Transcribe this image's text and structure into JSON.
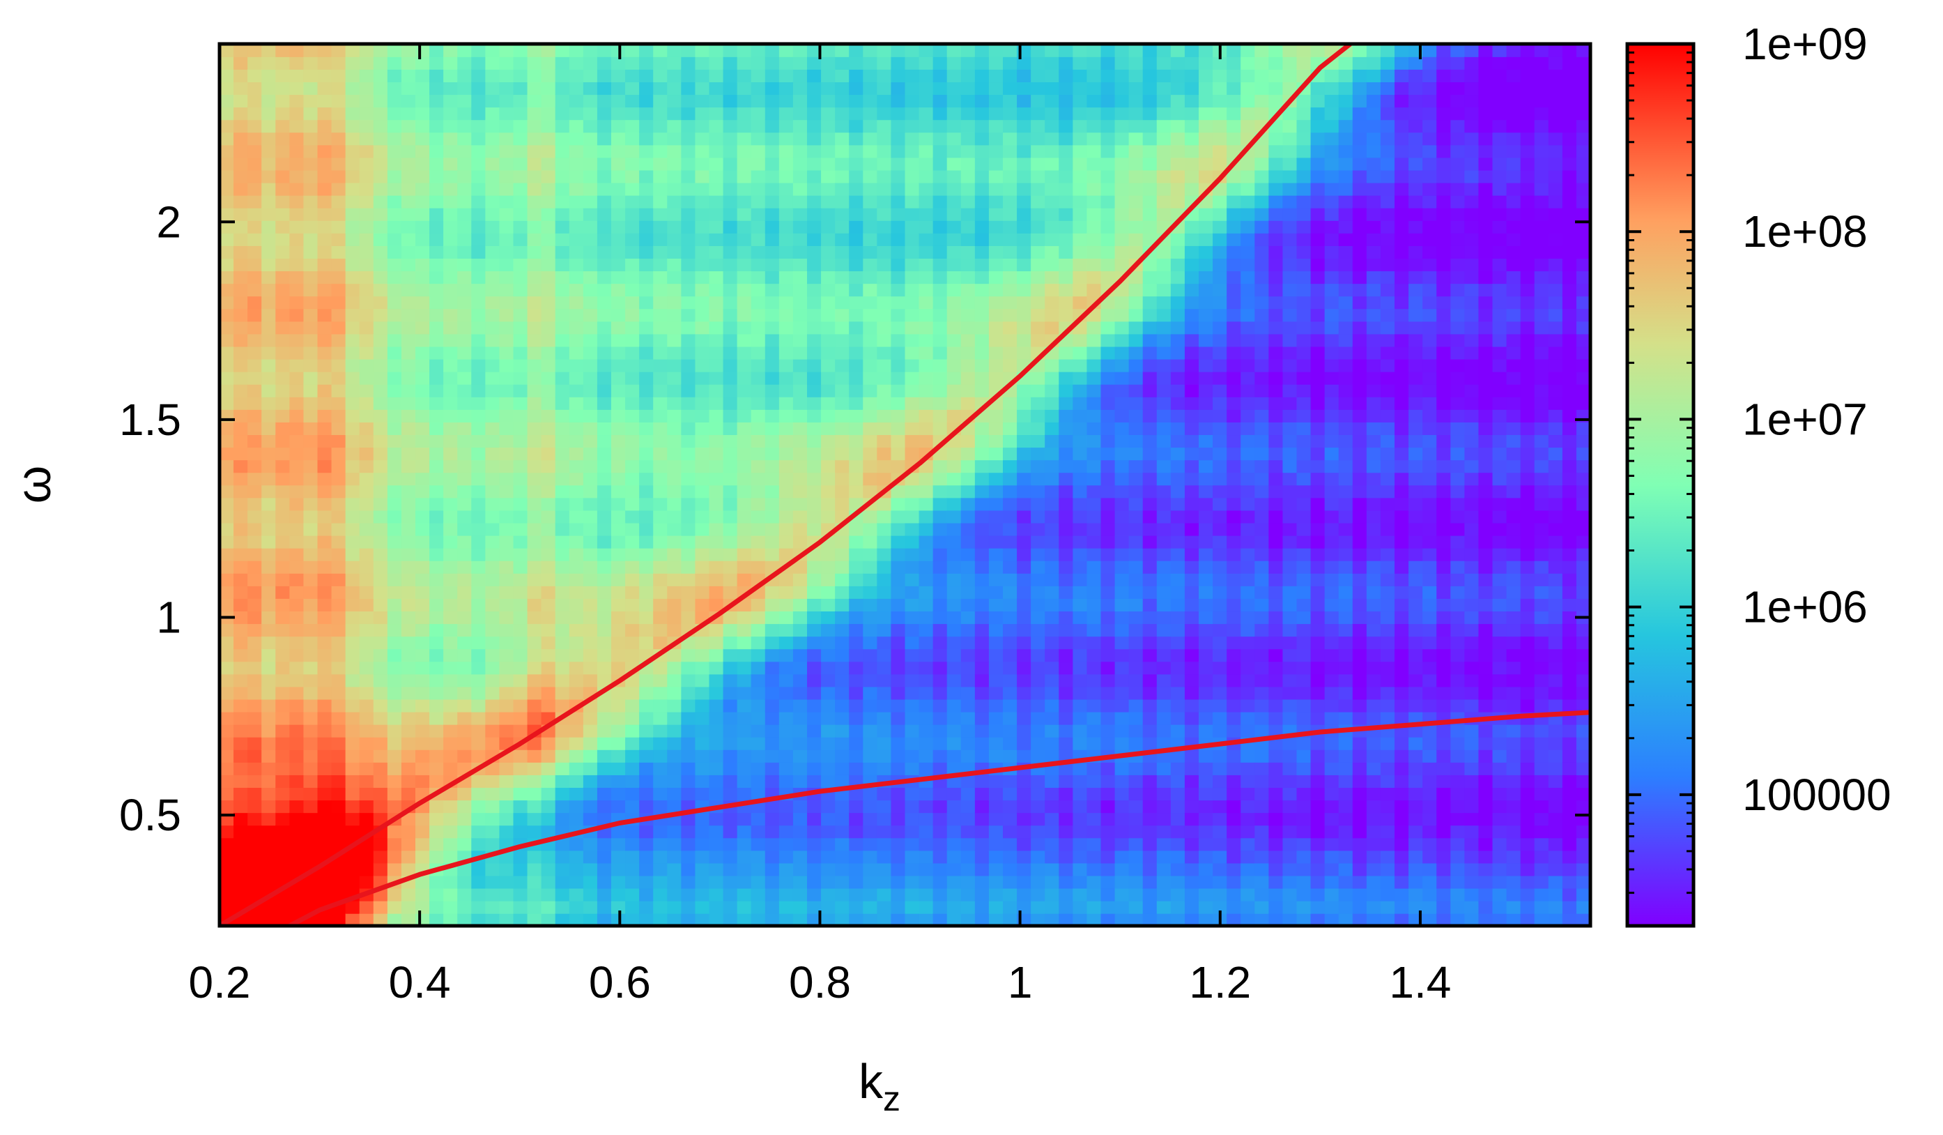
{
  "chart_data": {
    "type": "heatmap",
    "title": "",
    "xlabel": "k",
    "xlabel_subscript": "z",
    "ylabel": "ω",
    "xlim": [
      0.2,
      1.57
    ],
    "ylim": [
      0.22,
      2.45
    ],
    "x_ticks": [
      0.2,
      0.4,
      0.6,
      0.8,
      1.0,
      1.2,
      1.4
    ],
    "x_tick_labels": [
      "0.2",
      "0.4",
      "0.6",
      "0.8",
      "1",
      "1.2",
      "1.4"
    ],
    "y_ticks": [
      0.5,
      1.0,
      1.5,
      2.0
    ],
    "y_tick_labels": [
      "0.5",
      "1",
      "1.5",
      "2"
    ],
    "colorbar": {
      "scale": "log",
      "range": [
        20000,
        1000000000
      ],
      "ticks": [
        100000,
        1000000,
        10000000,
        100000000,
        1000000000
      ],
      "tick_labels": [
        "100000",
        "1e+06",
        "1e+07",
        "1e+08",
        "1e+09"
      ],
      "colormap": [
        "#8000ff",
        "#2c7fff",
        "#26c6de",
        "#80ffb4",
        "#d4e089",
        "#ffa060",
        "#ff0000"
      ]
    },
    "heatmap_description": {
      "peak_value": 1000000000,
      "background_value": 20000,
      "ridge_follows": "upper curve"
    },
    "series": [
      {
        "color": "#e8141c",
        "x": [
          0.2,
          0.3,
          0.4,
          0.5,
          0.6,
          0.7,
          0.8,
          0.9,
          1.0,
          1.1,
          1.2,
          1.3,
          1.33
        ],
        "y": [
          0.22,
          0.37,
          0.53,
          0.68,
          0.84,
          1.01,
          1.19,
          1.39,
          1.61,
          1.85,
          2.11,
          2.39,
          2.45
        ]
      },
      {
        "color": "#e8141c",
        "x": [
          0.27,
          0.3,
          0.4,
          0.5,
          0.6,
          0.7,
          0.8,
          0.9,
          1.0,
          1.1,
          1.2,
          1.3,
          1.4,
          1.5,
          1.57
        ],
        "y": [
          0.22,
          0.26,
          0.35,
          0.42,
          0.48,
          0.52,
          0.56,
          0.59,
          0.62,
          0.65,
          0.68,
          0.71,
          0.73,
          0.75,
          0.76
        ]
      }
    ]
  }
}
